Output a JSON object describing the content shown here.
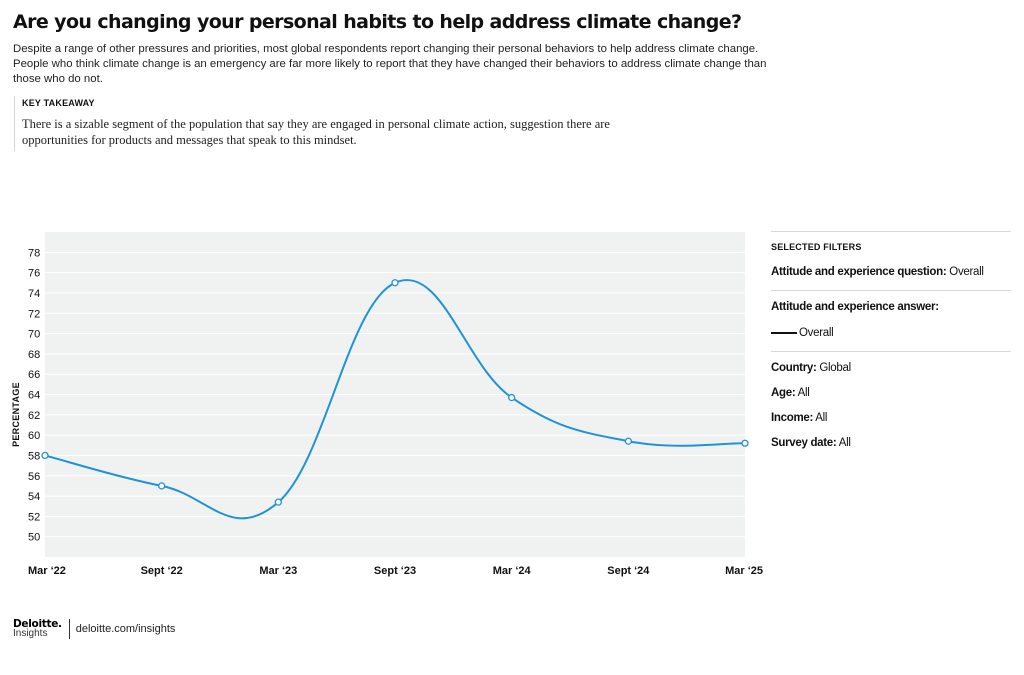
{
  "header": {
    "title": "Are you changing your personal habits to help address climate change?",
    "subtitle": "Despite a range of other pressures and priorities, most global respondents report changing their personal behaviors to help address climate change. People who think climate change is an emergency are far more likely to report that they have changed their behaviors to address climate change than those who do not."
  },
  "takeaway": {
    "label": "KEY TAKEAWAY",
    "text": "There is a sizable segment of the population that say they are engaged in personal climate action, suggestion there are opportunities for products and messages that speak to this mindset."
  },
  "chart_data": {
    "type": "line",
    "x": [
      "Mar ‘22",
      "Sept ‘22",
      "Mar ‘23",
      "Sept ‘23",
      "Mar ‘24",
      "Sept ‘24",
      "Mar ‘25"
    ],
    "series": [
      {
        "name": "Overall",
        "values": [
          58.0,
          55.0,
          53.4,
          75.0,
          63.7,
          59.4,
          59.2
        ]
      }
    ],
    "ylabel": "PERCENTAGE",
    "xlabel": "",
    "ylim": [
      48,
      80
    ],
    "yticks": [
      50,
      52,
      54,
      56,
      58,
      60,
      62,
      64,
      66,
      68,
      70,
      72,
      74,
      76,
      78
    ],
    "grid": true,
    "line_color": "#1f93d6",
    "plot_background": "#f0f1f1"
  },
  "filters": {
    "heading": "SELECTED FILTERS",
    "question_label": "Attitude and experience question:",
    "question_value": " Overall",
    "answer_label": "Attitude and experience answer:",
    "answer_value": "Overall",
    "country_label": "Country:",
    "country_value": " Global",
    "age_label": "Age:",
    "age_value": " All",
    "income_label": "Income:",
    "income_value": " All",
    "survey_label": "Survey date:",
    "survey_value": " All"
  },
  "footer": {
    "brand": "Deloitte",
    "brand_dot": ".",
    "brand_sub": "Insights",
    "url": "deloitte.com/insights"
  }
}
